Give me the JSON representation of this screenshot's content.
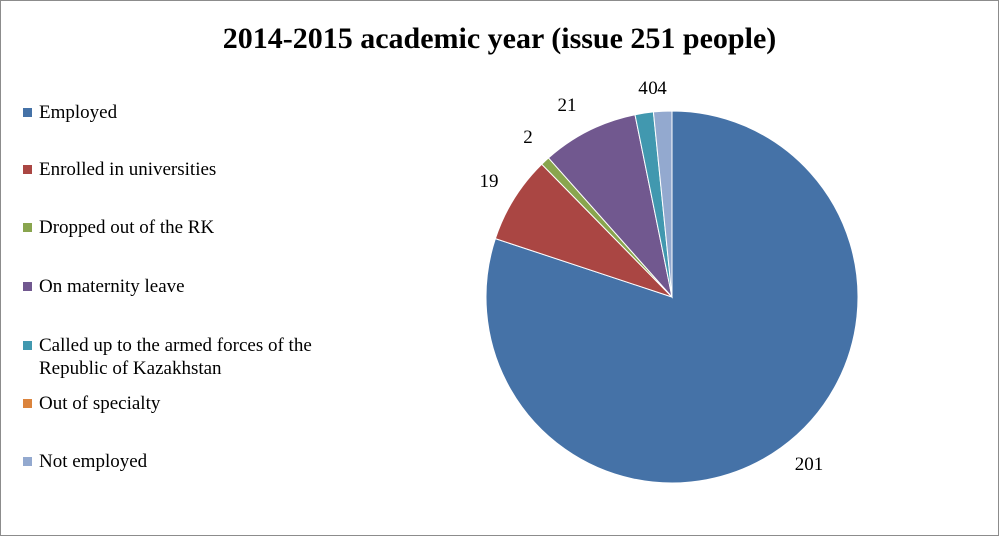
{
  "chart_data": {
    "type": "pie",
    "title": "2014-2015 academic year (issue 251 people)",
    "legend_position": "left",
    "slices": [
      {
        "name": "Employed",
        "value": 201,
        "label": "201",
        "color": "#4572A7"
      },
      {
        "name": "Enrolled in universities",
        "value": 19,
        "label": "19",
        "color": "#AA4643"
      },
      {
        "name": "Dropped out of the RK",
        "value": 2,
        "label": "2",
        "color": "#89A54E"
      },
      {
        "name": "On maternity leave",
        "value": 21,
        "label": "21",
        "color": "#71588F"
      },
      {
        "name": "Called up to the armed forces of the Republic of Kazakhstan",
        "value": 4,
        "label": "4",
        "color": "#4198AF"
      },
      {
        "name": "Out of specialty",
        "value": 0,
        "label": "0",
        "color": "#DB843D"
      },
      {
        "name": "Not employed",
        "value": 4,
        "label": "4",
        "color": "#93A9CF"
      }
    ]
  }
}
